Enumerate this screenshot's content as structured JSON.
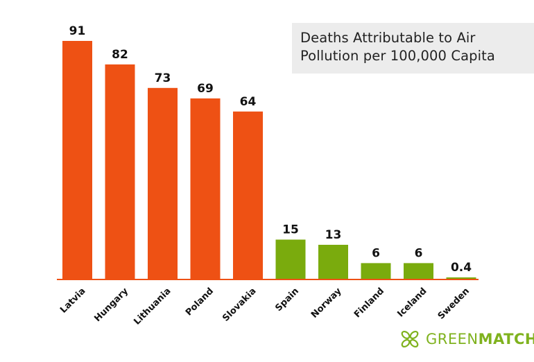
{
  "chart_data": {
    "type": "bar",
    "title_lines": [
      "Deaths Attributable to Air",
      "Pollution per 100,000 Capita"
    ],
    "categories": [
      "Latvia",
      "Hungary",
      "Lithuania",
      "Poland",
      "Slovakia",
      "Spain",
      "Norway",
      "Finland",
      "Iceland",
      "Sweden"
    ],
    "values": [
      91,
      82,
      73,
      69,
      64,
      15,
      13,
      6,
      6,
      0.4
    ],
    "value_labels": [
      "91",
      "82",
      "73",
      "69",
      "64",
      "15",
      "13",
      "6",
      "6",
      "0.4"
    ],
    "bar_colors": [
      "#ee5114",
      "#ee5114",
      "#ee5114",
      "#ee5114",
      "#ee5114",
      "#7aab0d",
      "#7aab0d",
      "#7aab0d",
      "#7aab0d",
      "#7aab0d"
    ],
    "xlabel": "",
    "ylabel": "",
    "ylim": [
      0,
      91
    ],
    "grid": false,
    "axis_color": "#ee5114"
  },
  "brand": {
    "name_light": "GREEN",
    "name_bold": "MATCH",
    "logo_icon": "clover-leaf-icon",
    "color": "#7fb21e"
  }
}
